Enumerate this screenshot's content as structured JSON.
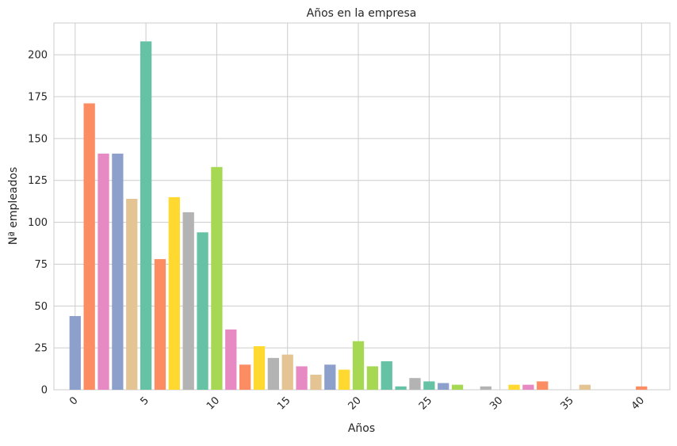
{
  "chart_data": {
    "type": "bar",
    "title": "Años en la empresa",
    "xlabel": "Años",
    "ylabel": "Nª empleados",
    "xlim": [
      -1.5,
      42
    ],
    "ylim": [
      0,
      219
    ],
    "x_ticks": [
      0,
      5,
      10,
      15,
      20,
      25,
      30,
      35,
      40
    ],
    "y_ticks": [
      0,
      25,
      50,
      75,
      100,
      125,
      150,
      175,
      200
    ],
    "grid": true,
    "legend": "none",
    "palette": [
      "#8da0cb",
      "#fc8d62",
      "#e78ac3",
      "#8da0cb",
      "#e5c494",
      "#66c2a5",
      "#fc8d62",
      "#ffd92f",
      "#b3b3b3",
      "#66c2a5",
      "#a6d854"
    ],
    "bars": [
      {
        "x": 0,
        "value": 44,
        "color": "#8da0cb"
      },
      {
        "x": 1,
        "value": 171,
        "color": "#fc8d62"
      },
      {
        "x": 2,
        "value": 141,
        "color": "#e78ac3"
      },
      {
        "x": 3,
        "value": 141,
        "color": "#8da0cb"
      },
      {
        "x": 4,
        "value": 114,
        "color": "#e5c494"
      },
      {
        "x": 5,
        "value": 208,
        "color": "#66c2a5"
      },
      {
        "x": 6,
        "value": 78,
        "color": "#fc8d62"
      },
      {
        "x": 7,
        "value": 115,
        "color": "#ffd92f"
      },
      {
        "x": 8,
        "value": 106,
        "color": "#b3b3b3"
      },
      {
        "x": 9,
        "value": 94,
        "color": "#66c2a5"
      },
      {
        "x": 10,
        "value": 133,
        "color": "#a6d854"
      },
      {
        "x": 11,
        "value": 36,
        "color": "#e78ac3"
      },
      {
        "x": 12,
        "value": 15,
        "color": "#fc8d62"
      },
      {
        "x": 13,
        "value": 26,
        "color": "#ffd92f"
      },
      {
        "x": 14,
        "value": 19,
        "color": "#b3b3b3"
      },
      {
        "x": 15,
        "value": 21,
        "color": "#e5c494"
      },
      {
        "x": 16,
        "value": 14,
        "color": "#e78ac3"
      },
      {
        "x": 17,
        "value": 9,
        "color": "#e5c494"
      },
      {
        "x": 18,
        "value": 15,
        "color": "#8da0cb"
      },
      {
        "x": 19,
        "value": 12,
        "color": "#ffd92f"
      },
      {
        "x": 20,
        "value": 29,
        "color": "#a6d854"
      },
      {
        "x": 21,
        "value": 14,
        "color": "#a6d854"
      },
      {
        "x": 22,
        "value": 17,
        "color": "#66c2a5"
      },
      {
        "x": 23,
        "value": 2,
        "color": "#66c2a5"
      },
      {
        "x": 24,
        "value": 7,
        "color": "#b3b3b3"
      },
      {
        "x": 25,
        "value": 5,
        "color": "#66c2a5"
      },
      {
        "x": 26,
        "value": 4,
        "color": "#8da0cb"
      },
      {
        "x": 27,
        "value": 3,
        "color": "#a6d854"
      },
      {
        "x": 29,
        "value": 2,
        "color": "#b3b3b3"
      },
      {
        "x": 31,
        "value": 3,
        "color": "#ffd92f"
      },
      {
        "x": 32,
        "value": 3,
        "color": "#e78ac3"
      },
      {
        "x": 33,
        "value": 5,
        "color": "#fc8d62"
      },
      {
        "x": 36,
        "value": 3,
        "color": "#e5c494"
      },
      {
        "x": 40,
        "value": 2,
        "color": "#fc8d62"
      }
    ]
  }
}
